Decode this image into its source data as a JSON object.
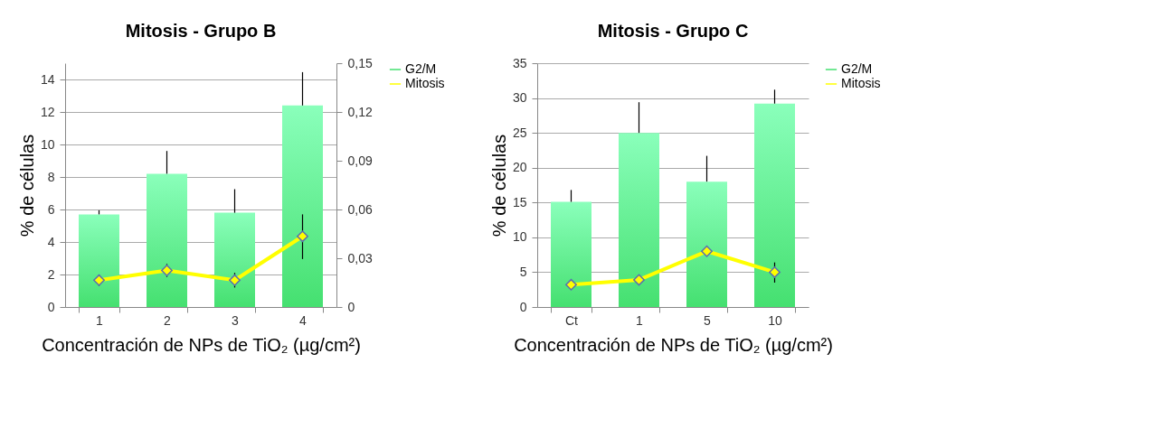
{
  "chart_data": [
    {
      "type": "bar",
      "title": "Mitosis - Grupo B",
      "xlabel": "Concentración de NPs de TiO₂ (µg/cm²)",
      "ylabel": "% de células",
      "categories": [
        "1",
        "2",
        "3",
        "4"
      ],
      "series": [
        {
          "name": "G2/M",
          "color": "#45e070",
          "values": [
            5.7,
            8.2,
            5.8,
            12.4
          ],
          "errors": [
            [
              5.7,
              5.95
            ],
            [
              8.2,
              9.6
            ],
            [
              5.8,
              7.25
            ],
            [
              12.4,
              14.45
            ]
          ]
        },
        {
          "name": "Mitosis",
          "type": "line",
          "axis": "y2",
          "color": "#ffff00",
          "marker": "diamond",
          "values": [
            0.0165,
            0.0225,
            0.0165,
            0.0435
          ],
          "errors": [
            0.0035,
            0.004,
            0.0045,
            [
              0.0295,
              0.057
            ]
          ]
        }
      ],
      "ylim": [
        0,
        15
      ],
      "yticks": [
        0,
        2,
        4,
        6,
        8,
        10,
        12,
        14
      ],
      "y2lim": [
        0,
        0.15
      ],
      "y2ticks": [
        {
          "value": 0,
          "label": "0"
        },
        {
          "value": 0.03,
          "label": "0,03"
        },
        {
          "value": 0.06,
          "label": "0,06"
        },
        {
          "value": 0.09,
          "label": "0,09"
        },
        {
          "value": 0.12,
          "label": "0,12"
        },
        {
          "value": 0.15,
          "label": "0,15"
        }
      ],
      "grid": "y",
      "legend": "right"
    },
    {
      "type": "bar",
      "title": "Mitosis - Grupo C",
      "xlabel": "Concentración de NPs de TiO₂ (µg/cm²)",
      "ylabel": "% de células",
      "categories": [
        "Ct",
        "1",
        "5",
        "10"
      ],
      "series": [
        {
          "name": "G2/M",
          "color": "#45e070",
          "values": [
            15.1,
            25.0,
            18.0,
            29.2
          ],
          "errors": [
            [
              15.1,
              16.8
            ],
            [
              25.0,
              29.4
            ],
            [
              18.0,
              21.7
            ],
            [
              29.2,
              31.2
            ]
          ]
        },
        {
          "name": "Mitosis",
          "type": "line",
          "color": "#ffff00",
          "marker": "diamond",
          "values": [
            3.2,
            3.9,
            8.0,
            5.0
          ],
          "errors": [
            null,
            null,
            0.7,
            [
              3.5,
              6.4
            ]
          ]
        }
      ],
      "ylim": [
        0,
        35
      ],
      "yticks": [
        0,
        5,
        10,
        15,
        20,
        25,
        30,
        35
      ],
      "grid": "y",
      "legend": "right"
    }
  ]
}
